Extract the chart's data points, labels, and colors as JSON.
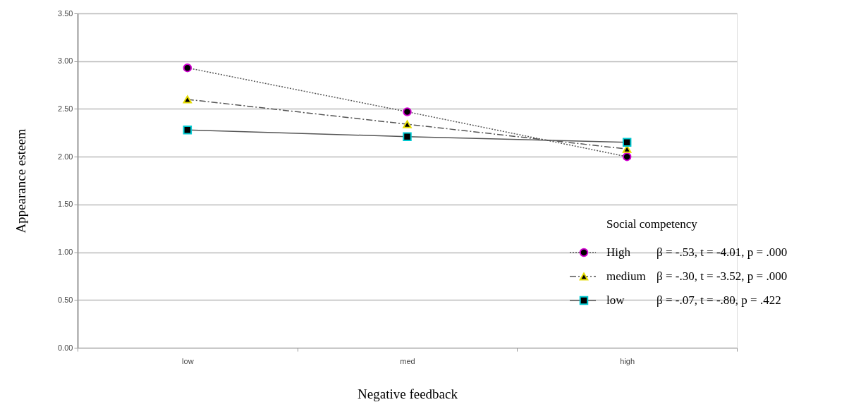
{
  "chart_data": {
    "type": "line",
    "xlabel": "Negative feedback",
    "ylabel": "Appearance esteem",
    "legend_title": "Social competency",
    "categories": [
      "low",
      "med",
      "high"
    ],
    "series": [
      {
        "name": "High",
        "color": "#d000d0",
        "marker": "circle",
        "line_style": "dotted",
        "values": [
          2.93,
          2.47,
          2.0
        ]
      },
      {
        "name": "medium",
        "color": "#e6dc00",
        "marker": "triangle",
        "line_style": "dashed",
        "values": [
          2.6,
          2.34,
          2.08
        ]
      },
      {
        "name": "low",
        "color": "#00c8d0",
        "marker": "square",
        "line_style": "solid",
        "values": [
          2.28,
          2.21,
          2.15
        ]
      }
    ],
    "annotations": [
      "β = -.53, t = -4.01, p = .000",
      "β = -.30, t = -3.52, p = .000",
      "β = -.07, t = -.80, p = .422"
    ],
    "ylim": [
      0,
      3.5
    ],
    "yticks": [
      {
        "value": 0,
        "label": "0.00"
      },
      {
        "value": 0.5,
        "label": "0.50"
      },
      {
        "value": 1,
        "label": "1.00"
      },
      {
        "value": 1.5,
        "label": "1.50"
      },
      {
        "value": 2,
        "label": "2.00"
      },
      {
        "value": 2.5,
        "label": "2.50"
      },
      {
        "value": 3,
        "label": "3.00"
      },
      {
        "value": 3.5,
        "label": "3.50"
      }
    ],
    "grid": "y",
    "legend": "bottom right"
  }
}
